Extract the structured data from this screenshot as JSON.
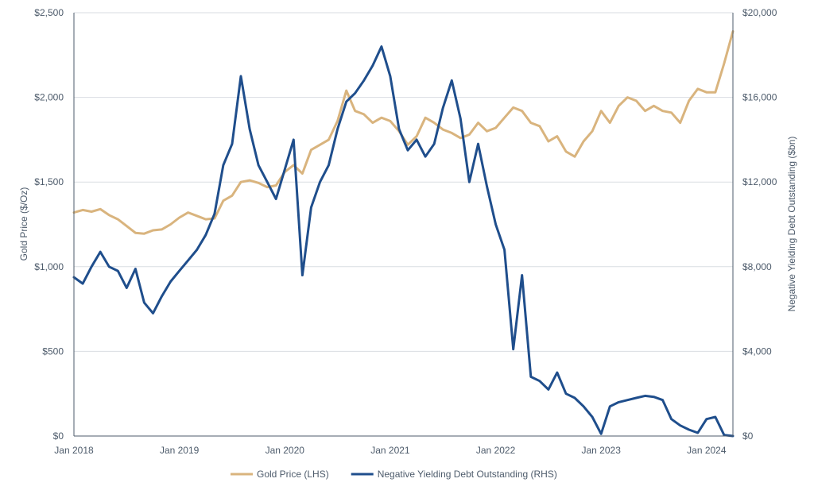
{
  "chart_data": {
    "type": "line",
    "title": "",
    "xlabel": "",
    "ylabel_left": "Gold Price ($/Oz)",
    "ylabel_right": "Negative Yielding Debt Outstanding ($bn)",
    "x_tick_labels": [
      "Jan 2018",
      "Jan 2019",
      "Jan 2020",
      "Jan 2021",
      "Jan 2022",
      "Jan 2023",
      "Jan 2024"
    ],
    "x_range": [
      "2018-01",
      "2024-04"
    ],
    "y_left": {
      "range": [
        0,
        2500
      ],
      "tick_labels": [
        "$0",
        "$500",
        "$1,000",
        "$1,500",
        "$2,000",
        "$2,500"
      ]
    },
    "y_right": {
      "range": [
        0,
        20000
      ],
      "tick_labels": [
        "$0",
        "$4,000",
        "$8,000",
        "$12,000",
        "$16,000",
        "$20,000"
      ]
    },
    "grid": "horizontal",
    "legend_position": "bottom-center",
    "series": [
      {
        "name": "Gold Price (LHS)",
        "axis": "left",
        "color": "#d9b47e",
        "points": [
          [
            "2018-01",
            1320
          ],
          [
            "2018-02",
            1335
          ],
          [
            "2018-03",
            1325
          ],
          [
            "2018-04",
            1340
          ],
          [
            "2018-05",
            1305
          ],
          [
            "2018-06",
            1280
          ],
          [
            "2018-07",
            1240
          ],
          [
            "2018-08",
            1200
          ],
          [
            "2018-09",
            1195
          ],
          [
            "2018-10",
            1215
          ],
          [
            "2018-11",
            1220
          ],
          [
            "2018-12",
            1250
          ],
          [
            "2019-01",
            1290
          ],
          [
            "2019-02",
            1320
          ],
          [
            "2019-03",
            1300
          ],
          [
            "2019-04",
            1280
          ],
          [
            "2019-05",
            1285
          ],
          [
            "2019-06",
            1390
          ],
          [
            "2019-07",
            1420
          ],
          [
            "2019-08",
            1500
          ],
          [
            "2019-09",
            1510
          ],
          [
            "2019-10",
            1495
          ],
          [
            "2019-11",
            1470
          ],
          [
            "2019-12",
            1480
          ],
          [
            "2020-01",
            1560
          ],
          [
            "2020-02",
            1600
          ],
          [
            "2020-03",
            1550
          ],
          [
            "2020-04",
            1690
          ],
          [
            "2020-05",
            1720
          ],
          [
            "2020-06",
            1750
          ],
          [
            "2020-07",
            1860
          ],
          [
            "2020-08",
            2040
          ],
          [
            "2020-09",
            1920
          ],
          [
            "2020-10",
            1900
          ],
          [
            "2020-11",
            1850
          ],
          [
            "2020-12",
            1880
          ],
          [
            "2021-01",
            1860
          ],
          [
            "2021-02",
            1800
          ],
          [
            "2021-03",
            1720
          ],
          [
            "2021-04",
            1770
          ],
          [
            "2021-05",
            1880
          ],
          [
            "2021-06",
            1850
          ],
          [
            "2021-07",
            1810
          ],
          [
            "2021-08",
            1790
          ],
          [
            "2021-09",
            1760
          ],
          [
            "2021-10",
            1780
          ],
          [
            "2021-11",
            1850
          ],
          [
            "2021-12",
            1800
          ],
          [
            "2022-01",
            1820
          ],
          [
            "2022-02",
            1880
          ],
          [
            "2022-03",
            1940
          ],
          [
            "2022-04",
            1920
          ],
          [
            "2022-05",
            1850
          ],
          [
            "2022-06",
            1830
          ],
          [
            "2022-07",
            1740
          ],
          [
            "2022-08",
            1770
          ],
          [
            "2022-09",
            1680
          ],
          [
            "2022-10",
            1650
          ],
          [
            "2022-11",
            1740
          ],
          [
            "2022-12",
            1800
          ],
          [
            "2023-01",
            1920
          ],
          [
            "2023-02",
            1850
          ],
          [
            "2023-03",
            1950
          ],
          [
            "2023-04",
            2000
          ],
          [
            "2023-05",
            1980
          ],
          [
            "2023-06",
            1920
          ],
          [
            "2023-07",
            1950
          ],
          [
            "2023-08",
            1920
          ],
          [
            "2023-09",
            1910
          ],
          [
            "2023-10",
            1850
          ],
          [
            "2023-11",
            1980
          ],
          [
            "2023-12",
            2050
          ],
          [
            "2024-01",
            2030
          ],
          [
            "2024-02",
            2030
          ],
          [
            "2024-03",
            2200
          ],
          [
            "2024-04",
            2390
          ]
        ]
      },
      {
        "name": "Negative Yielding Debt Outstanding (RHS)",
        "axis": "right",
        "color": "#1f4e8c",
        "points": [
          [
            "2018-01",
            7500
          ],
          [
            "2018-02",
            7200
          ],
          [
            "2018-03",
            8000
          ],
          [
            "2018-04",
            8700
          ],
          [
            "2018-05",
            8000
          ],
          [
            "2018-06",
            7800
          ],
          [
            "2018-07",
            7000
          ],
          [
            "2018-08",
            7900
          ],
          [
            "2018-09",
            6300
          ],
          [
            "2018-10",
            5800
          ],
          [
            "2018-11",
            6600
          ],
          [
            "2018-12",
            7300
          ],
          [
            "2019-01",
            7800
          ],
          [
            "2019-02",
            8300
          ],
          [
            "2019-03",
            8800
          ],
          [
            "2019-04",
            9500
          ],
          [
            "2019-05",
            10500
          ],
          [
            "2019-06",
            12800
          ],
          [
            "2019-07",
            13800
          ],
          [
            "2019-08",
            17000
          ],
          [
            "2019-09",
            14500
          ],
          [
            "2019-10",
            12800
          ],
          [
            "2019-11",
            12000
          ],
          [
            "2019-12",
            11200
          ],
          [
            "2020-01",
            12600
          ],
          [
            "2020-02",
            14000
          ],
          [
            "2020-03",
            7600
          ],
          [
            "2020-04",
            10800
          ],
          [
            "2020-05",
            12000
          ],
          [
            "2020-06",
            12800
          ],
          [
            "2020-07",
            14500
          ],
          [
            "2020-08",
            15800
          ],
          [
            "2020-09",
            16200
          ],
          [
            "2020-10",
            16800
          ],
          [
            "2020-11",
            17500
          ],
          [
            "2020-12",
            18400
          ],
          [
            "2021-01",
            17000
          ],
          [
            "2021-02",
            14500
          ],
          [
            "2021-03",
            13500
          ],
          [
            "2021-04",
            14000
          ],
          [
            "2021-05",
            13200
          ],
          [
            "2021-06",
            13800
          ],
          [
            "2021-07",
            15500
          ],
          [
            "2021-08",
            16800
          ],
          [
            "2021-09",
            15000
          ],
          [
            "2021-10",
            12000
          ],
          [
            "2021-11",
            13800
          ],
          [
            "2021-12",
            11800
          ],
          [
            "2022-01",
            10000
          ],
          [
            "2022-02",
            8800
          ],
          [
            "2022-03",
            4100
          ],
          [
            "2022-04",
            7600
          ],
          [
            "2022-05",
            2800
          ],
          [
            "2022-06",
            2600
          ],
          [
            "2022-07",
            2200
          ],
          [
            "2022-08",
            3000
          ],
          [
            "2022-09",
            2000
          ],
          [
            "2022-10",
            1800
          ],
          [
            "2022-11",
            1400
          ],
          [
            "2022-12",
            900
          ],
          [
            "2023-01",
            100
          ],
          [
            "2023-02",
            1400
          ],
          [
            "2023-03",
            1600
          ],
          [
            "2023-04",
            1700
          ],
          [
            "2023-05",
            1800
          ],
          [
            "2023-06",
            1900
          ],
          [
            "2023-07",
            1850
          ],
          [
            "2023-08",
            1700
          ],
          [
            "2023-09",
            800
          ],
          [
            "2023-10",
            500
          ],
          [
            "2023-11",
            300
          ],
          [
            "2023-12",
            150
          ],
          [
            "2024-01",
            800
          ],
          [
            "2024-02",
            900
          ],
          [
            "2024-03",
            50
          ],
          [
            "2024-04",
            0
          ]
        ]
      }
    ]
  }
}
